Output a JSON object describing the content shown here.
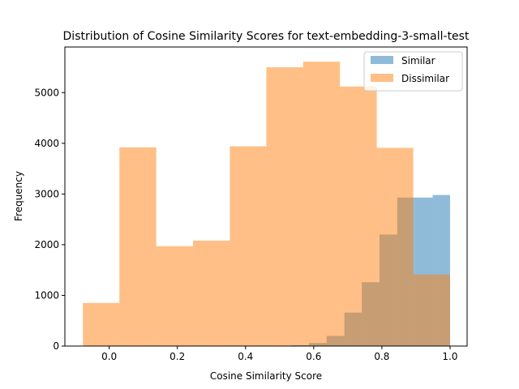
{
  "chart_data": {
    "type": "histogram",
    "title": "Distribution of Cosine Similarity Scores for text-embedding-3-small-test",
    "xlabel": "Cosine Similarity Score",
    "ylabel": "Frequency",
    "xlim": [
      -0.13,
      1.05
    ],
    "ylim": [
      0,
      5900
    ],
    "xticks": [
      0.0,
      0.2,
      0.4,
      0.6,
      0.8,
      1.0
    ],
    "xtick_labels": [
      "0.0",
      "0.2",
      "0.4",
      "0.6",
      "0.8",
      "1.0"
    ],
    "yticks": [
      0,
      1000,
      2000,
      3000,
      4000,
      5000
    ],
    "ytick_labels": [
      "0",
      "1000",
      "2000",
      "3000",
      "4000",
      "5000"
    ],
    "legend_position": "top-right",
    "series": [
      {
        "name": "Similar",
        "color": "#1f77b4",
        "alpha": 0.5,
        "bins": [
          {
            "x0": 0.482,
            "x1": 0.534,
            "count": 5
          },
          {
            "x0": 0.534,
            "x1": 0.586,
            "count": 15
          },
          {
            "x0": 0.586,
            "x1": 0.638,
            "count": 60
          },
          {
            "x0": 0.638,
            "x1": 0.69,
            "count": 200
          },
          {
            "x0": 0.69,
            "x1": 0.741,
            "count": 660
          },
          {
            "x0": 0.741,
            "x1": 0.793,
            "count": 1260
          },
          {
            "x0": 0.793,
            "x1": 0.845,
            "count": 2200
          },
          {
            "x0": 0.845,
            "x1": 0.897,
            "count": 2930
          },
          {
            "x0": 0.897,
            "x1": 0.949,
            "count": 2930
          },
          {
            "x0": 0.949,
            "x1": 1.0,
            "count": 2980
          }
        ]
      },
      {
        "name": "Dissimilar",
        "color": "#ff7f0e",
        "alpha": 0.5,
        "bins": [
          {
            "x0": -0.077,
            "x1": 0.03,
            "count": 850
          },
          {
            "x0": 0.03,
            "x1": 0.138,
            "count": 3920
          },
          {
            "x0": 0.138,
            "x1": 0.246,
            "count": 1970
          },
          {
            "x0": 0.246,
            "x1": 0.354,
            "count": 2080
          },
          {
            "x0": 0.354,
            "x1": 0.461,
            "count": 3940
          },
          {
            "x0": 0.461,
            "x1": 0.569,
            "count": 5500
          },
          {
            "x0": 0.569,
            "x1": 0.677,
            "count": 5610
          },
          {
            "x0": 0.677,
            "x1": 0.785,
            "count": 5120
          },
          {
            "x0": 0.785,
            "x1": 0.892,
            "count": 3910
          },
          {
            "x0": 0.892,
            "x1": 1.0,
            "count": 1410
          }
        ]
      }
    ]
  }
}
